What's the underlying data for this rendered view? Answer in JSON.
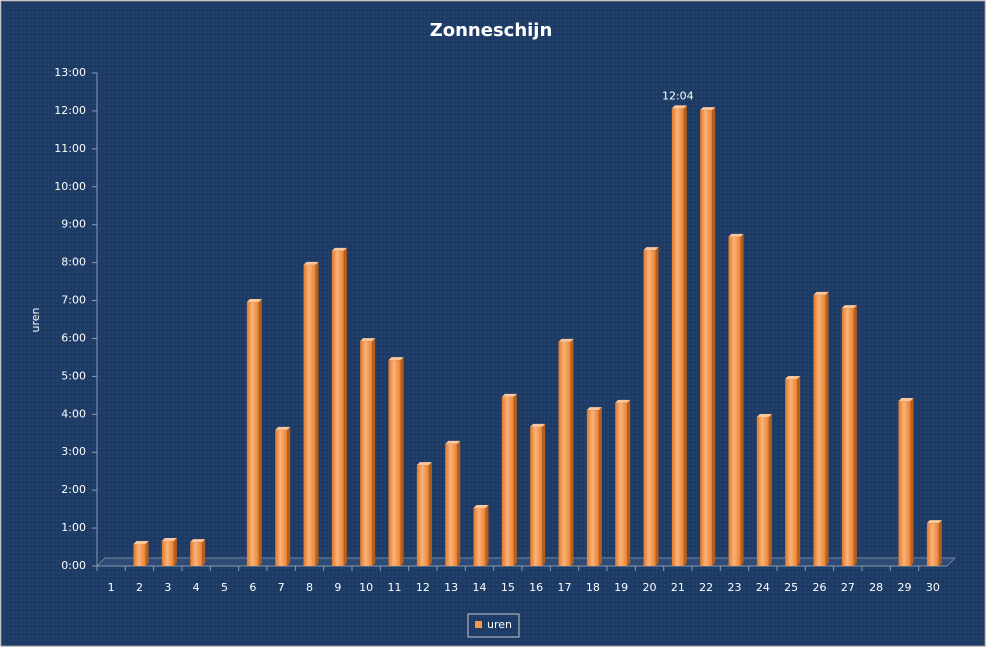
{
  "chart_data": {
    "type": "bar",
    "title": "Zonneschijn",
    "ylabel": "uren",
    "categories": [
      "1",
      "2",
      "3",
      "4",
      "5",
      "6",
      "7",
      "8",
      "9",
      "10",
      "11",
      "12",
      "13",
      "14",
      "15",
      "16",
      "17",
      "18",
      "19",
      "20",
      "21",
      "22",
      "23",
      "24",
      "25",
      "26",
      "27",
      "28",
      "29",
      "30"
    ],
    "series": [
      {
        "name": "uren",
        "color": "#f79646",
        "values": [
          0,
          0.58,
          0.66,
          0.63,
          0,
          6.96,
          3.59,
          7.94,
          8.31,
          5.93,
          5.43,
          2.66,
          3.22,
          1.53,
          4.46,
          3.67,
          5.91,
          4.11,
          4.3,
          8.33,
          12.0667,
          12.02,
          8.68,
          3.93,
          4.93,
          7.15,
          6.8,
          0,
          4.35,
          1.13
        ],
        "value_labels": [
          null,
          null,
          null,
          null,
          null,
          null,
          null,
          null,
          null,
          null,
          null,
          null,
          null,
          null,
          null,
          null,
          null,
          null,
          null,
          null,
          "12:04",
          null,
          null,
          null,
          null,
          null,
          null,
          null,
          null,
          null
        ]
      }
    ],
    "ylim": [
      0,
      13
    ],
    "yticks": [
      {
        "value": 0,
        "label": "0:00"
      },
      {
        "value": 1,
        "label": "1:00"
      },
      {
        "value": 2,
        "label": "2:00"
      },
      {
        "value": 3,
        "label": "3:00"
      },
      {
        "value": 4,
        "label": "4:00"
      },
      {
        "value": 5,
        "label": "5:00"
      },
      {
        "value": 6,
        "label": "6:00"
      },
      {
        "value": 7,
        "label": "7:00"
      },
      {
        "value": 8,
        "label": "8:00"
      },
      {
        "value": 9,
        "label": "9:00"
      },
      {
        "value": 10,
        "label": "10:00"
      },
      {
        "value": 11,
        "label": "11:00"
      },
      {
        "value": 12,
        "label": "12:00"
      },
      {
        "value": 13,
        "label": "13:00"
      }
    ],
    "grid": false,
    "legend": "bottom"
  }
}
